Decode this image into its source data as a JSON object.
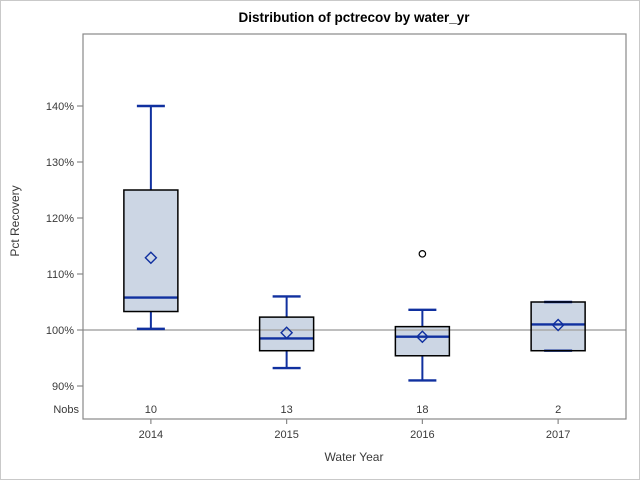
{
  "chart_data": {
    "type": "boxplot",
    "title": "Distribution of pctrecov by water_yr",
    "xlabel": "Water Year",
    "ylabel": "Pct Recovery",
    "nobs_label": "Nobs",
    "categories": [
      "2014",
      "2015",
      "2016",
      "2017"
    ],
    "nobs": [
      "10",
      "13",
      "18",
      "2"
    ],
    "y_tick_values": [
      90,
      100,
      110,
      120,
      130,
      140
    ],
    "y_tick_labels": [
      "90%",
      "100%",
      "110%",
      "120%",
      "130%",
      "140%"
    ],
    "ylim": [
      84,
      153
    ],
    "reference_line": 100,
    "grid": "off",
    "legend": "none",
    "series": [
      {
        "category": "2014",
        "n": 10,
        "whisker_low": 100.2,
        "q1": 103.3,
        "median": 105.8,
        "q3": 125.0,
        "whisker_high": 140.0,
        "mean": 112.9,
        "outliers": []
      },
      {
        "category": "2015",
        "n": 13,
        "whisker_low": 93.2,
        "q1": 96.3,
        "median": 98.5,
        "q3": 102.3,
        "whisker_high": 106.0,
        "mean": 99.5,
        "outliers": []
      },
      {
        "category": "2016",
        "n": 18,
        "whisker_low": 91.0,
        "q1": 95.4,
        "median": 98.8,
        "q3": 100.6,
        "whisker_high": 103.6,
        "mean": 98.8,
        "outliers": [
          113.6
        ]
      },
      {
        "category": "2017",
        "n": 2,
        "whisker_low": 96.3,
        "q1": 96.3,
        "median": 101.0,
        "q3": 105.0,
        "whisker_high": 105.0,
        "mean": 100.9,
        "outliers": []
      }
    ],
    "colors": {
      "box_fill": "#ccd6e4",
      "box_border": "#000000",
      "line_blue": "#10309f",
      "reference_line": "#a8a8a8",
      "frame": "#888888",
      "axis_text": "#3a3a3a",
      "title_text": "#000000",
      "outlier": "#000000",
      "background": "#ffffff"
    }
  }
}
